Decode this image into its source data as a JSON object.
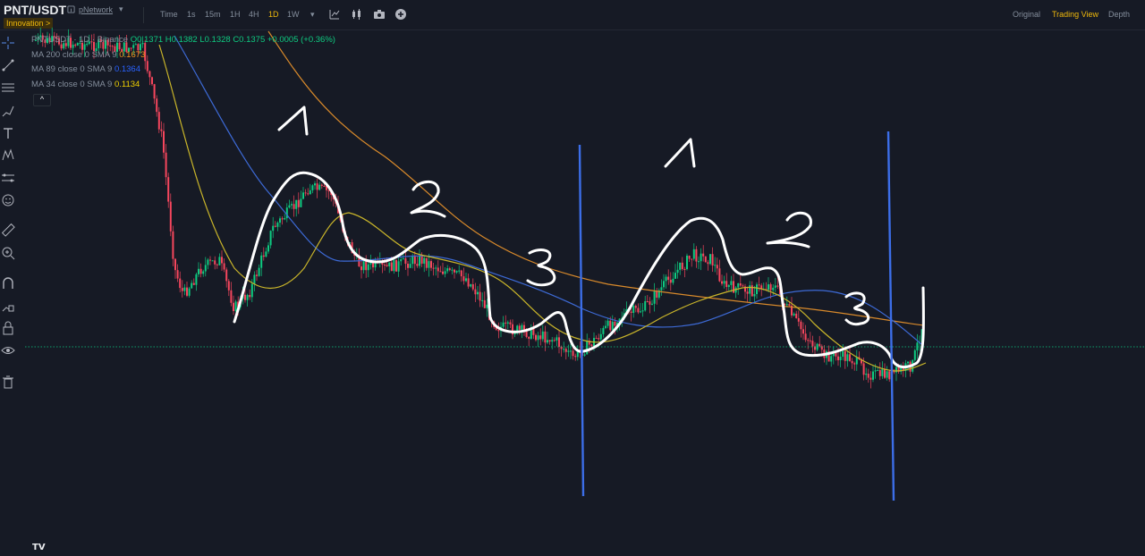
{
  "header": {
    "pair": "PNT/USDT",
    "project_link": "pNetwork",
    "badge": "Innovation >",
    "intervals": [
      "Time",
      "1s",
      "15m",
      "1H",
      "4H",
      "1D",
      "1W"
    ],
    "active_interval": "1D",
    "views": [
      "Original",
      "Trading View",
      "Depth"
    ],
    "active_view": "Trading View"
  },
  "legend": {
    "symbol": "PNTUSDT · 1D · Binance",
    "ohlc": "O0.1371 H0.1382 L0.1328 C0.1375 +0.0005 (+0.36%)",
    "mas": [
      {
        "label": "MA 200 close 0 SMA 9",
        "value": "0.1673",
        "color": "#f7931a"
      },
      {
        "label": "MA 89 close 0 SMA 9",
        "value": "0.1364",
        "color": "#2962ff"
      },
      {
        "label": "MA 34 close 0 SMA 9",
        "value": "0.1134",
        "color": "#f0d000"
      }
    ],
    "collapse_glyph": "^"
  },
  "annotations": {
    "first_wave": [
      "1",
      "2",
      "3"
    ],
    "second_wave": [
      "1",
      "2",
      "3"
    ]
  },
  "colors": {
    "up": "#0ecb81",
    "down": "#f6465d",
    "ma200": "#d98a2b",
    "ma89": "#3d6ad6",
    "ma34": "#c9b52a",
    "annotation": "#ffffff",
    "divider": "#3c6ee8",
    "price_line": "#0ecb81"
  },
  "chart_data": {
    "type": "candlestick",
    "symbol": "PNTUSDT",
    "interval": "1D",
    "exchange": "Binance",
    "last": {
      "open": 0.1371,
      "high": 0.1382,
      "low": 0.1328,
      "close": 0.1375,
      "change": 0.0005,
      "change_pct": 0.36
    },
    "indicators": [
      {
        "name": "MA 200 close 0 SMA 9",
        "value": 0.1673
      },
      {
        "name": "MA 89 close 0 SMA 9",
        "value": 0.1364
      },
      {
        "name": "MA 34 close 0 SMA 9",
        "value": 0.1134
      }
    ],
    "grid": false
  }
}
